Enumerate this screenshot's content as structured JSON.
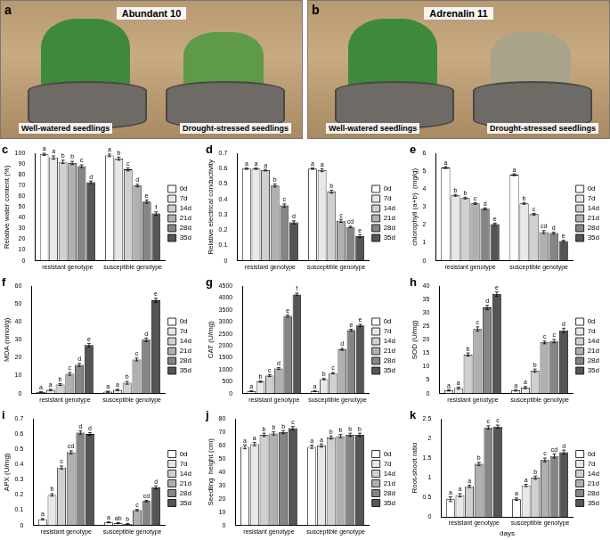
{
  "photos": [
    {
      "panel": "a",
      "title": "Abundant 10",
      "labels": [
        "Well-watered seedlings",
        "Drought-stressed seedlings"
      ]
    },
    {
      "panel": "b",
      "title": "Adrenalin 11",
      "labels": [
        "Well-watered seedlings",
        "Drought-stressed seedlings"
      ]
    }
  ],
  "chart_data": [
    {
      "panel": "c",
      "type": "bar",
      "y_label": "Relative water content (%)",
      "categories": [
        "resistant genotype",
        "susceptible genotype"
      ],
      "ylim": [
        0,
        100
      ],
      "yticks": [
        0,
        10,
        20,
        30,
        40,
        50,
        60,
        70,
        80,
        90,
        100
      ],
      "grid": false,
      "legend": "right",
      "series": [
        {
          "name": "0d",
          "color": "#ffffff",
          "values": [
            99,
            98
          ],
          "errors": [
            1,
            1.2
          ],
          "letters": [
            "a",
            "a"
          ]
        },
        {
          "name": "7d",
          "color": "#e8e8e8",
          "values": [
            96,
            95
          ],
          "errors": [
            1.5,
            1.5
          ],
          "letters": [
            "a",
            "b"
          ]
        },
        {
          "name": "14d",
          "color": "#d0d0d0",
          "values": [
            92,
            85
          ],
          "errors": [
            1.5,
            1.5
          ],
          "letters": [
            "b",
            "c"
          ]
        },
        {
          "name": "21d",
          "color": "#b0b0b0",
          "values": [
            91,
            70
          ],
          "errors": [
            1.5,
            1.2
          ],
          "letters": [
            "b",
            "d"
          ]
        },
        {
          "name": "28d",
          "color": "#858585",
          "values": [
            88,
            55
          ],
          "errors": [
            1.2,
            1.5
          ],
          "letters": [
            "c",
            "e"
          ]
        },
        {
          "name": "35d",
          "color": "#555555",
          "values": [
            73,
            44
          ],
          "errors": [
            1.2,
            1.5
          ],
          "letters": [
            "d",
            "f"
          ]
        }
      ]
    },
    {
      "panel": "d",
      "type": "bar",
      "y_label": "Relative electrical conductivity",
      "categories": [
        "resistant genotype",
        "susceptible genotype"
      ],
      "ylim": [
        0,
        0.7
      ],
      "yticks": [
        0,
        0.1,
        0.2,
        0.3,
        0.4,
        0.5,
        0.6,
        0.7
      ],
      "grid": false,
      "legend": "right",
      "series": [
        {
          "name": "0d",
          "color": "#ffffff",
          "values": [
            0.6,
            0.6
          ],
          "errors": [
            0.005,
            0.005
          ],
          "letters": [
            "a",
            "a"
          ]
        },
        {
          "name": "7d",
          "color": "#e8e8e8",
          "values": [
            0.6,
            0.59
          ],
          "errors": [
            0.005,
            0.01
          ],
          "letters": [
            "a",
            "a"
          ]
        },
        {
          "name": "14d",
          "color": "#d0d0d0",
          "values": [
            0.59,
            0.45
          ],
          "errors": [
            0.005,
            0.01
          ],
          "letters": [
            "a",
            "b"
          ]
        },
        {
          "name": "21d",
          "color": "#b0b0b0",
          "values": [
            0.49,
            0.26
          ],
          "errors": [
            0.01,
            0.01
          ],
          "letters": [
            "b",
            "c"
          ]
        },
        {
          "name": "28d",
          "color": "#858585",
          "values": [
            0.36,
            0.22
          ],
          "errors": [
            0.01,
            0.005
          ],
          "letters": [
            "c",
            "cd"
          ]
        },
        {
          "name": "35d",
          "color": "#555555",
          "values": [
            0.25,
            0.16
          ],
          "errors": [
            0.01,
            0.01
          ],
          "letters": [
            "d",
            "e"
          ]
        }
      ]
    },
    {
      "panel": "e",
      "type": "bar",
      "y_label": "chlorophyll (a+b)  (mg/g)",
      "categories": [
        "resistant genotype",
        "susceptible genotype"
      ],
      "ylim": [
        0,
        6
      ],
      "yticks": [
        0,
        1,
        2,
        3,
        4,
        5,
        6
      ],
      "grid": false,
      "legend": "right",
      "series": [
        {
          "name": "0d",
          "color": "#ffffff",
          "values": [
            5.2,
            4.8
          ],
          "errors": [
            0.05,
            0.05
          ],
          "letters": [
            "a",
            "a"
          ]
        },
        {
          "name": "7d",
          "color": "#e8e8e8",
          "values": [
            3.65,
            3.2
          ],
          "errors": [
            0.05,
            0.05
          ],
          "letters": [
            "b",
            "b"
          ]
        },
        {
          "name": "14d",
          "color": "#d0d0d0",
          "values": [
            3.5,
            2.6
          ],
          "errors": [
            0.05,
            0.05
          ],
          "letters": [
            "b",
            "c"
          ]
        },
        {
          "name": "21d",
          "color": "#b0b0b0",
          "values": [
            3.2,
            1.6
          ],
          "errors": [
            0.05,
            0.08
          ],
          "letters": [
            "c",
            "cd"
          ]
        },
        {
          "name": "28d",
          "color": "#858585",
          "values": [
            2.9,
            1.55
          ],
          "errors": [
            0.05,
            0.05
          ],
          "letters": [
            "d",
            "d"
          ]
        },
        {
          "name": "35d",
          "color": "#555555",
          "values": [
            2.05,
            1.1
          ],
          "errors": [
            0.05,
            0.05
          ],
          "letters": [
            "e",
            "e"
          ]
        }
      ]
    },
    {
      "panel": "f",
      "type": "bar",
      "y_label": "MDA (nmol/g)",
      "categories": [
        "resistant genotype",
        "susceptible genotype"
      ],
      "ylim": [
        0,
        60
      ],
      "yticks": [
        0,
        10,
        20,
        30,
        40,
        50,
        60
      ],
      "grid": false,
      "legend": "right",
      "series": [
        {
          "name": "0d",
          "color": "#ffffff",
          "values": [
            0.8,
            1
          ],
          "errors": [
            0.3,
            0.3
          ],
          "letters": [
            "a",
            "a"
          ]
        },
        {
          "name": "7d",
          "color": "#e8e8e8",
          "values": [
            2,
            2
          ],
          "errors": [
            0.4,
            0.4
          ],
          "letters": [
            "a",
            "a"
          ]
        },
        {
          "name": "14d",
          "color": "#d0d0d0",
          "values": [
            5,
            6
          ],
          "errors": [
            0.5,
            0.8
          ],
          "letters": [
            "b",
            "b"
          ]
        },
        {
          "name": "21d",
          "color": "#b0b0b0",
          "values": [
            11,
            19
          ],
          "errors": [
            0.8,
            0.8
          ],
          "letters": [
            "c",
            "c"
          ]
        },
        {
          "name": "28d",
          "color": "#858585",
          "values": [
            16,
            30
          ],
          "errors": [
            0.8,
            1
          ],
          "letters": [
            "d",
            "d"
          ]
        },
        {
          "name": "35d",
          "color": "#555555",
          "values": [
            27,
            52
          ],
          "errors": [
            1,
            1.2
          ],
          "letters": [
            "e",
            "e"
          ]
        }
      ]
    },
    {
      "panel": "g",
      "type": "bar",
      "y_label": "CAT (U/mg)",
      "categories": [
        "resistant genotype",
        "susceptible genotype"
      ],
      "ylim": [
        0,
        4500
      ],
      "yticks": [
        0,
        500,
        1000,
        1500,
        2000,
        2500,
        3000,
        3500,
        4000,
        4500
      ],
      "grid": false,
      "legend": "right",
      "series": [
        {
          "name": "0d",
          "color": "#ffffff",
          "values": [
            100,
            100
          ],
          "errors": [
            20,
            20
          ],
          "letters": [
            "a",
            "a"
          ]
        },
        {
          "name": "7d",
          "color": "#e8e8e8",
          "values": [
            500,
            600
          ],
          "errors": [
            30,
            30
          ],
          "letters": [
            "b",
            "b"
          ]
        },
        {
          "name": "14d",
          "color": "#d0d0d0",
          "values": [
            750,
            850
          ],
          "errors": [
            40,
            30
          ],
          "letters": [
            "c",
            "c"
          ]
        },
        {
          "name": "21d",
          "color": "#b0b0b0",
          "values": [
            1050,
            1850
          ],
          "errors": [
            40,
            40
          ],
          "letters": [
            "d",
            "d"
          ]
        },
        {
          "name": "28d",
          "color": "#858585",
          "values": [
            3250,
            2650
          ],
          "errors": [
            50,
            40
          ],
          "letters": [
            "e",
            "e"
          ]
        },
        {
          "name": "35d",
          "color": "#555555",
          "values": [
            4150,
            2850
          ],
          "errors": [
            50,
            50
          ],
          "letters": [
            "f",
            "e"
          ]
        }
      ]
    },
    {
      "panel": "h",
      "type": "bar",
      "y_label": "SOD (U/mg)",
      "categories": [
        "resistant genotype",
        "susceptible genotype"
      ],
      "ylim": [
        0,
        40
      ],
      "yticks": [
        0,
        5,
        10,
        15,
        20,
        25,
        30,
        35,
        40
      ],
      "grid": false,
      "legend": "right",
      "series": [
        {
          "name": "0d",
          "color": "#ffffff",
          "values": [
            1.2,
            1.2
          ],
          "errors": [
            0.3,
            0.3
          ],
          "letters": [
            "a",
            "a"
          ]
        },
        {
          "name": "7d",
          "color": "#e8e8e8",
          "values": [
            2,
            2.2
          ],
          "errors": [
            0.4,
            0.4
          ],
          "letters": [
            "a",
            "a"
          ]
        },
        {
          "name": "14d",
          "color": "#d0d0d0",
          "values": [
            14.5,
            8.5
          ],
          "errors": [
            0.6,
            0.6
          ],
          "letters": [
            "b",
            "b"
          ]
        },
        {
          "name": "21d",
          "color": "#b0b0b0",
          "values": [
            24,
            19
          ],
          "errors": [
            0.8,
            0.5
          ],
          "letters": [
            "c",
            "c"
          ]
        },
        {
          "name": "28d",
          "color": "#858585",
          "values": [
            32,
            19.5
          ],
          "errors": [
            0.8,
            0.6
          ],
          "letters": [
            "d",
            "c"
          ]
        },
        {
          "name": "35d",
          "color": "#555555",
          "values": [
            37,
            23.5
          ],
          "errors": [
            0.8,
            0.8
          ],
          "letters": [
            "e",
            "d"
          ]
        }
      ]
    },
    {
      "panel": "i",
      "type": "bar",
      "y_label": "APX (U/mg)",
      "categories": [
        "resistant genotype",
        "susceptible genotype"
      ],
      "ylim": [
        0,
        0.7
      ],
      "yticks": [
        0,
        0.1,
        0.2,
        0.3,
        0.4,
        0.5,
        0.6,
        0.7
      ],
      "grid": false,
      "legend": "right",
      "series": [
        {
          "name": "0d",
          "color": "#ffffff",
          "values": [
            0.04,
            0.02
          ],
          "errors": [
            0.005,
            0.003
          ],
          "letters": [
            "a",
            "a"
          ]
        },
        {
          "name": "7d",
          "color": "#e8e8e8",
          "values": [
            0.2,
            0.015
          ],
          "errors": [
            0.008,
            0.003
          ],
          "letters": [
            "b",
            "ab"
          ]
        },
        {
          "name": "14d",
          "color": "#d0d0d0",
          "values": [
            0.38,
            0.01
          ],
          "errors": [
            0.01,
            0.003
          ],
          "letters": [
            "c",
            "b"
          ]
        },
        {
          "name": "21d",
          "color": "#b0b0b0",
          "values": [
            0.48,
            0.1
          ],
          "errors": [
            0.01,
            0.005
          ],
          "letters": [
            "cd",
            "c"
          ]
        },
        {
          "name": "28d",
          "color": "#858585",
          "values": [
            0.61,
            0.16
          ],
          "errors": [
            0.01,
            0.005
          ],
          "letters": [
            "d",
            "cd"
          ]
        },
        {
          "name": "35d",
          "color": "#555555",
          "values": [
            0.6,
            0.25
          ],
          "errors": [
            0.01,
            0.01
          ],
          "letters": [
            "d",
            "d"
          ]
        }
      ]
    },
    {
      "panel": "j",
      "type": "bar",
      "y_label": "Seedling  height (cm)",
      "categories": [
        "resistant genotype",
        "susceptible genotype"
      ],
      "ylim": [
        0,
        80
      ],
      "yticks": [
        0,
        10,
        20,
        30,
        40,
        50,
        60,
        70,
        80
      ],
      "grid": false,
      "legend": "right",
      "series": [
        {
          "name": "0d",
          "color": "#ffffff",
          "values": [
            59,
            59
          ],
          "errors": [
            1.5,
            1.2
          ],
          "letters": [
            "a",
            "a"
          ]
        },
        {
          "name": "7d",
          "color": "#e8e8e8",
          "values": [
            61,
            60
          ],
          "errors": [
            1.2,
            1.2
          ],
          "letters": [
            "a",
            "a"
          ]
        },
        {
          "name": "14d",
          "color": "#d0d0d0",
          "values": [
            68,
            66
          ],
          "errors": [
            1.2,
            1.2
          ],
          "letters": [
            "b",
            "b"
          ]
        },
        {
          "name": "21d",
          "color": "#b0b0b0",
          "values": [
            69,
            67
          ],
          "errors": [
            1.2,
            1.2
          ],
          "letters": [
            "b",
            "b"
          ]
        },
        {
          "name": "28d",
          "color": "#858585",
          "values": [
            70,
            68
          ],
          "errors": [
            1.2,
            1.2
          ],
          "letters": [
            "b",
            "b"
          ]
        },
        {
          "name": "35d",
          "color": "#555555",
          "values": [
            73,
            68
          ],
          "errors": [
            1.2,
            1.2
          ],
          "letters": [
            "c",
            "b"
          ]
        }
      ]
    },
    {
      "panel": "k",
      "type": "bar",
      "y_label": "Root-shoot ratio",
      "x_label": "days",
      "categories": [
        "resistant genotype",
        "susceptible genotype"
      ],
      "ylim": [
        0,
        2.5
      ],
      "yticks": [
        0,
        0.5,
        1,
        1.5,
        2,
        2.5
      ],
      "grid": false,
      "legend": "right",
      "series": [
        {
          "name": "0d",
          "color": "#ffffff",
          "values": [
            0.45,
            0.45
          ],
          "errors": [
            0.06,
            0.03
          ],
          "letters": [
            "a",
            "a"
          ]
        },
        {
          "name": "7d",
          "color": "#e8e8e8",
          "values": [
            0.55,
            0.8
          ],
          "errors": [
            0.04,
            0.03
          ],
          "letters": [
            "a",
            "a"
          ]
        },
        {
          "name": "14d",
          "color": "#d0d0d0",
          "values": [
            0.78,
            1.0
          ],
          "errors": [
            0.03,
            0.04
          ],
          "letters": [
            "a",
            "b"
          ]
        },
        {
          "name": "21d",
          "color": "#b0b0b0",
          "values": [
            1.35,
            1.45
          ],
          "errors": [
            0.04,
            0.05
          ],
          "letters": [
            "b",
            "c"
          ]
        },
        {
          "name": "28d",
          "color": "#858585",
          "values": [
            2.28,
            1.55
          ],
          "errors": [
            0.04,
            0.05
          ],
          "letters": [
            "c",
            "cd"
          ]
        },
        {
          "name": "35d",
          "color": "#555555",
          "values": [
            2.3,
            1.65
          ],
          "errors": [
            0.04,
            0.05
          ],
          "letters": [
            "c",
            "d"
          ]
        }
      ]
    }
  ]
}
